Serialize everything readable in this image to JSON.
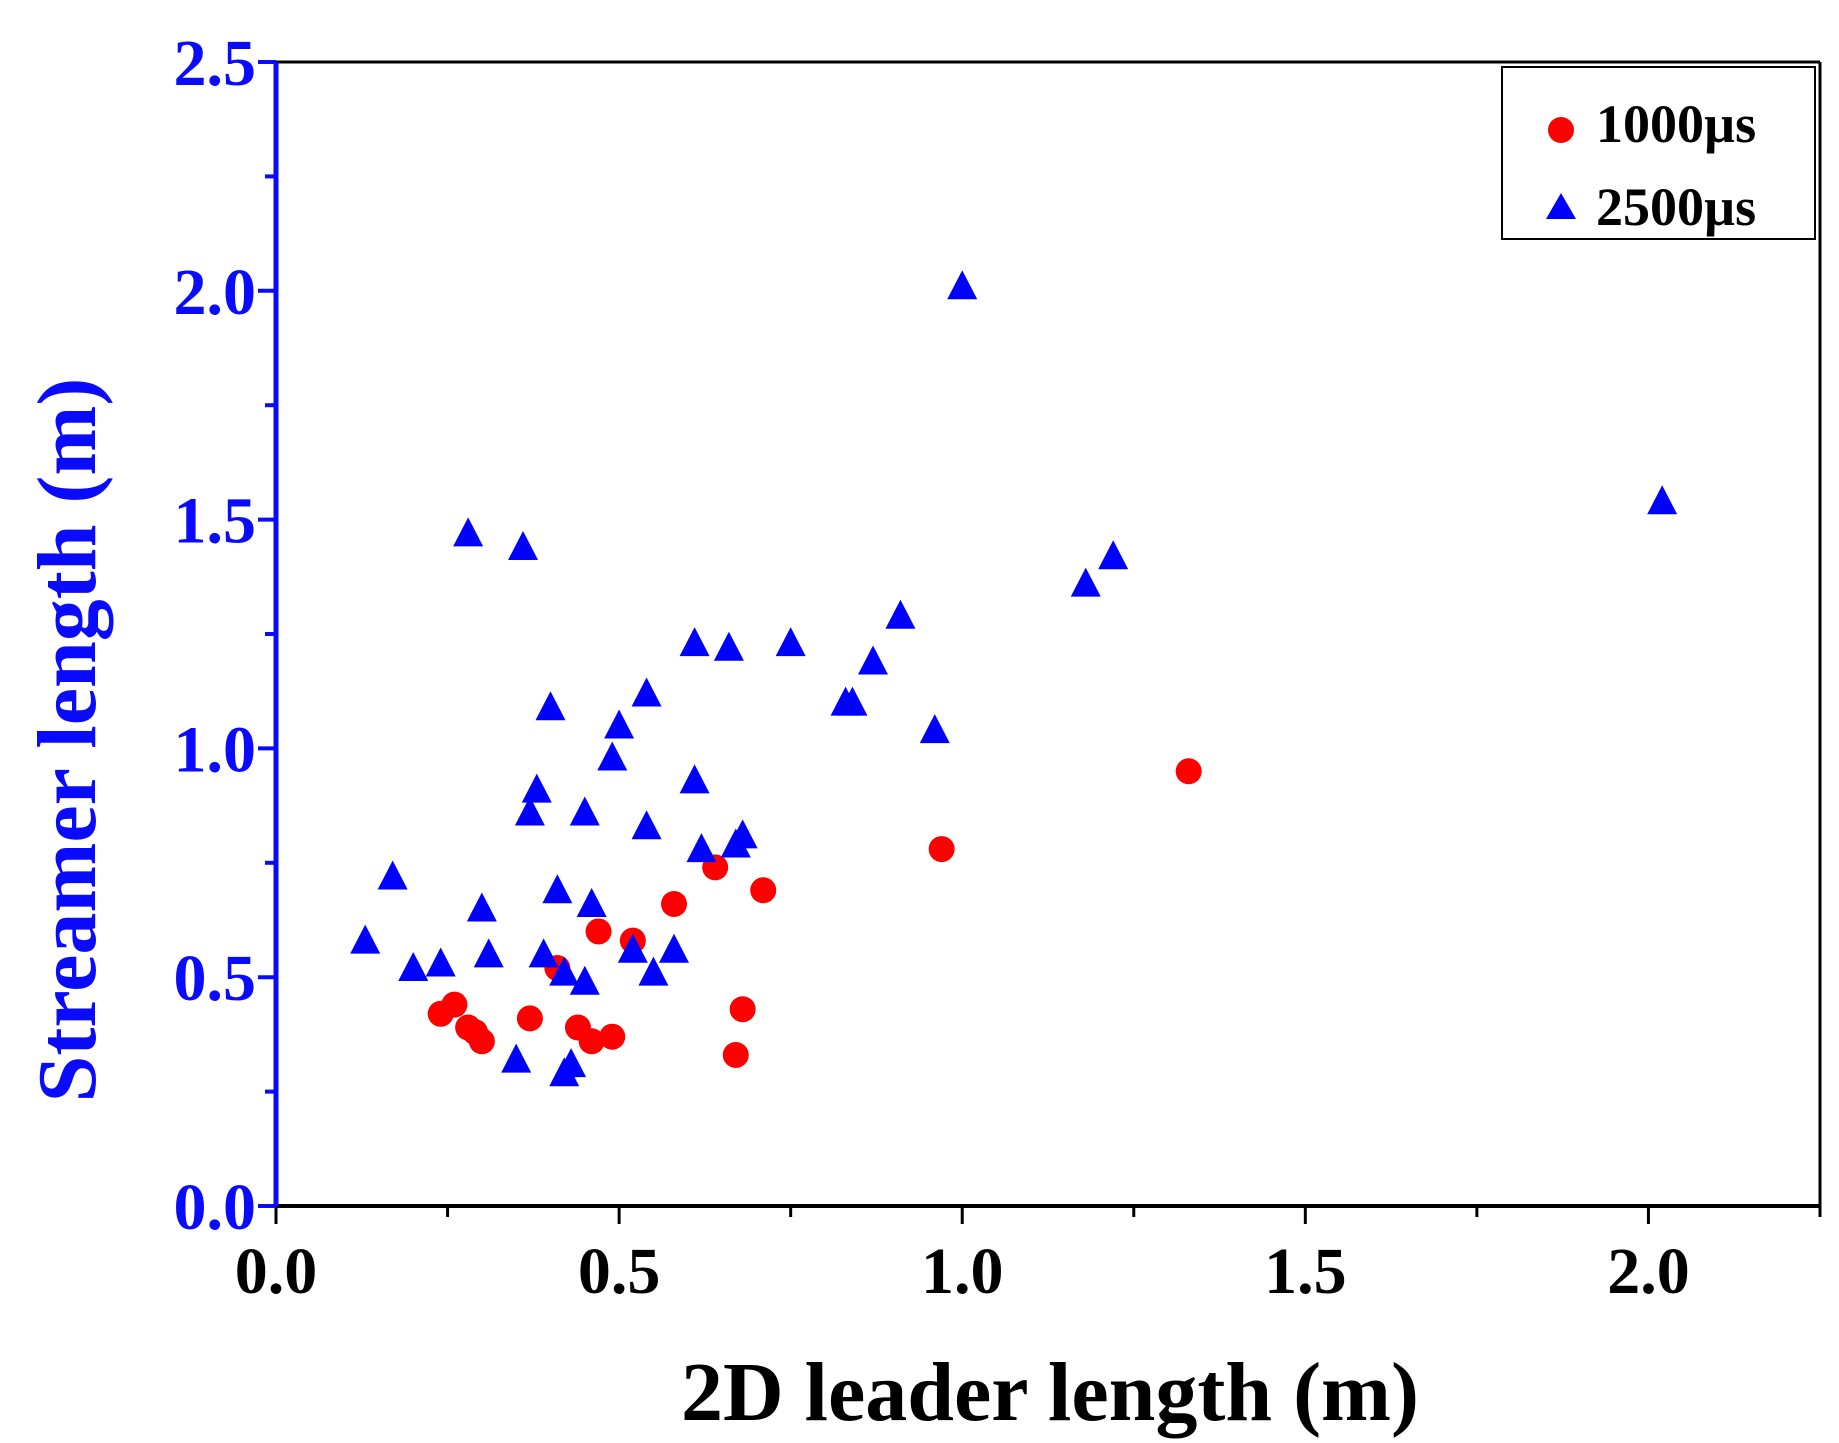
{
  "chart_data": {
    "type": "scatter",
    "title": "",
    "xlabel": "2D leader length (m)",
    "ylabel": "Streamer length (m)",
    "xlim": [
      0.0,
      2.25
    ],
    "ylim": [
      0.0,
      2.5
    ],
    "x_ticks": [
      0.0,
      0.5,
      1.0,
      1.5,
      2.0
    ],
    "x_tick_labels": [
      "0.0",
      "0.5",
      "1.0",
      "1.5",
      "2.0"
    ],
    "y_ticks": [
      0.0,
      0.5,
      1.0,
      1.5,
      2.0,
      2.5
    ],
    "y_tick_labels": [
      "0.0",
      "0.5",
      "1.0",
      "1.5",
      "2.0",
      "2.5"
    ],
    "grid": false,
    "legend_position": "top-right",
    "colors": {
      "y_axis": "#0a0aff",
      "x_axis": "#000000",
      "series_1000": "#ff0000",
      "series_2500": "#0000ff"
    },
    "series": [
      {
        "name": "1000µs",
        "marker": "circle",
        "points": [
          [
            0.24,
            0.42
          ],
          [
            0.26,
            0.44
          ],
          [
            0.28,
            0.39
          ],
          [
            0.29,
            0.38
          ],
          [
            0.3,
            0.36
          ],
          [
            0.37,
            0.41
          ],
          [
            0.41,
            0.52
          ],
          [
            0.44,
            0.39
          ],
          [
            0.46,
            0.36
          ],
          [
            0.47,
            0.6
          ],
          [
            0.49,
            0.37
          ],
          [
            0.52,
            0.58
          ],
          [
            0.58,
            0.66
          ],
          [
            0.64,
            0.74
          ],
          [
            0.67,
            0.33
          ],
          [
            0.68,
            0.43
          ],
          [
            0.71,
            0.69
          ],
          [
            0.97,
            0.78
          ],
          [
            1.33,
            0.95
          ]
        ]
      },
      {
        "name": "2500µs",
        "marker": "triangle",
        "points": [
          [
            0.13,
            0.58
          ],
          [
            0.17,
            0.72
          ],
          [
            0.2,
            0.52
          ],
          [
            0.24,
            0.53
          ],
          [
            0.28,
            1.47
          ],
          [
            0.3,
            0.65
          ],
          [
            0.31,
            0.55
          ],
          [
            0.35,
            0.32
          ],
          [
            0.36,
            1.44
          ],
          [
            0.37,
            0.86
          ],
          [
            0.38,
            0.91
          ],
          [
            0.39,
            0.55
          ],
          [
            0.4,
            1.09
          ],
          [
            0.41,
            0.69
          ],
          [
            0.42,
            0.51
          ],
          [
            0.42,
            0.29
          ],
          [
            0.43,
            0.31
          ],
          [
            0.45,
            0.49
          ],
          [
            0.45,
            0.86
          ],
          [
            0.46,
            0.66
          ],
          [
            0.49,
            0.98
          ],
          [
            0.5,
            1.05
          ],
          [
            0.52,
            0.56
          ],
          [
            0.54,
            1.12
          ],
          [
            0.54,
            0.83
          ],
          [
            0.55,
            0.51
          ],
          [
            0.58,
            0.56
          ],
          [
            0.61,
            1.23
          ],
          [
            0.61,
            0.93
          ],
          [
            0.62,
            0.78
          ],
          [
            0.66,
            1.22
          ],
          [
            0.67,
            0.79
          ],
          [
            0.68,
            0.81
          ],
          [
            0.75,
            1.23
          ],
          [
            0.83,
            1.1
          ],
          [
            0.84,
            1.1
          ],
          [
            0.87,
            1.19
          ],
          [
            0.91,
            1.29
          ],
          [
            0.96,
            1.04
          ],
          [
            1.0,
            2.01
          ],
          [
            1.18,
            1.36
          ],
          [
            1.22,
            1.42
          ],
          [
            2.02,
            1.54
          ]
        ]
      }
    ]
  }
}
